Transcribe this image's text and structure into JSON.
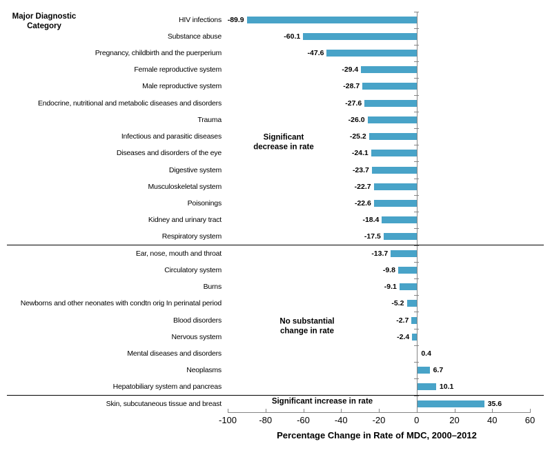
{
  "header": {
    "line1": "Major Diagnostic",
    "line2": "Category"
  },
  "chart_data": {
    "type": "bar",
    "orientation": "horizontal",
    "title": "",
    "xlabel": "Percentage Change in Rate of MDC, 2000–2012",
    "ylabel": "Major Diagnostic Category",
    "xlim": [
      -100,
      60
    ],
    "xticks": [
      -100,
      -80,
      -60,
      -40,
      -20,
      0,
      20,
      40,
      60
    ],
    "xtick_labels": [
      "-100",
      "-80",
      "-60",
      "-40",
      "-20",
      "0",
      "20",
      "40",
      "60"
    ],
    "grid": false,
    "legend": "none",
    "bar_color": "#48A3C8",
    "axis_color": "#848484",
    "categories": [
      "HIV infections",
      "Substance abuse",
      "Pregnancy, childbirth and the puerperium",
      "Female reproductive system",
      "Male reproductive system",
      "Endocrine, nutritional and metabolic diseases and disorders",
      "Trauma",
      "Infectious and parasitic diseases",
      "Diseases and disorders of the eye",
      "Digestive system",
      "Musculoskeletal system",
      "Poisonings",
      "Kidney and urinary tract",
      "Respiratory system",
      "Ear, nose, mouth and throat",
      "Circulatory system",
      "Burns",
      "Newborns and other neonates with condtn orig In perinatal period",
      "Blood disorders",
      "Nervous system",
      "Mental diseases and disorders",
      "Neoplasms",
      "Hepatobiliary system and pancreas",
      "Skin, subcutaneous tissue and breast"
    ],
    "values": [
      -89.9,
      -60.1,
      -47.6,
      -29.4,
      -28.7,
      -27.6,
      -26.0,
      -25.2,
      -24.1,
      -23.7,
      -22.7,
      -22.6,
      -18.4,
      -17.5,
      -13.7,
      -9.8,
      -9.1,
      -5.2,
      -2.7,
      -2.4,
      0.4,
      6.7,
      10.1,
      35.6
    ],
    "value_labels": [
      "-89.9",
      "-60.1",
      "-47.6",
      "-29.4",
      "-28.7",
      "-27.6",
      "-26.0",
      "-25.2",
      "-24.1",
      "-23.7",
      "-22.7",
      "-22.6",
      "-18.4",
      "-17.5",
      "-13.7",
      "-9.8",
      "-9.1",
      "-5.2",
      "-2.7",
      "-2.4",
      "0.4",
      "6.7",
      "10.1",
      "35.6"
    ],
    "groups": [
      {
        "label": "Significant decrease in rate",
        "lines": [
          "Significant",
          "decrease in rate"
        ],
        "row_start": 0,
        "row_end": 13
      },
      {
        "label": "No substantial change in rate",
        "lines": [
          "No substantial",
          "change in rate"
        ],
        "row_start": 14,
        "row_end": 22
      },
      {
        "label": "Significant increase in rate",
        "lines": [
          "Significant increase in rate"
        ],
        "row_start": 23,
        "row_end": 23
      }
    ]
  }
}
